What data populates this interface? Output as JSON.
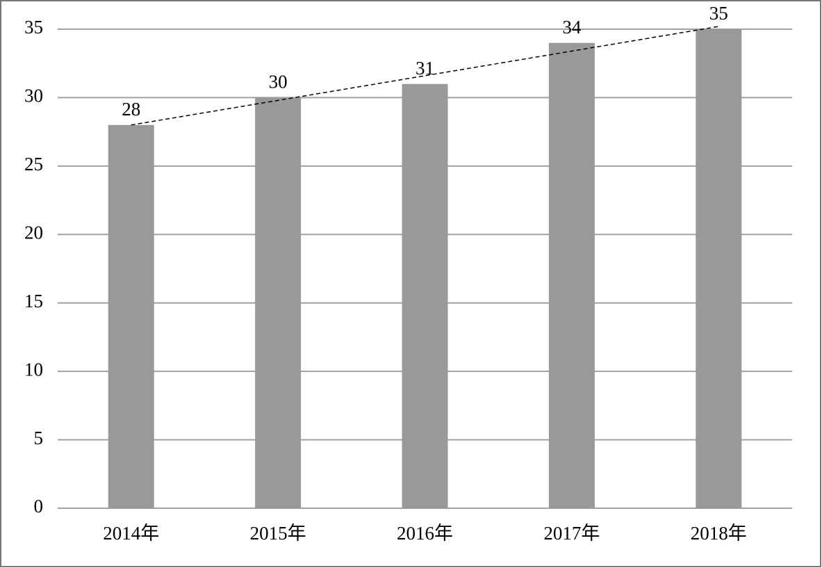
{
  "chart_data": {
    "type": "bar",
    "categories": [
      "2014年",
      "2015年",
      "2016年",
      "2017年",
      "2018年"
    ],
    "values": [
      28,
      30,
      31,
      34,
      35
    ],
    "color": "#999999",
    "ylim": [
      0,
      35
    ],
    "yticks": [
      0,
      5,
      10,
      15,
      20,
      25,
      30,
      35
    ],
    "grid": true,
    "trendline": "linear"
  }
}
